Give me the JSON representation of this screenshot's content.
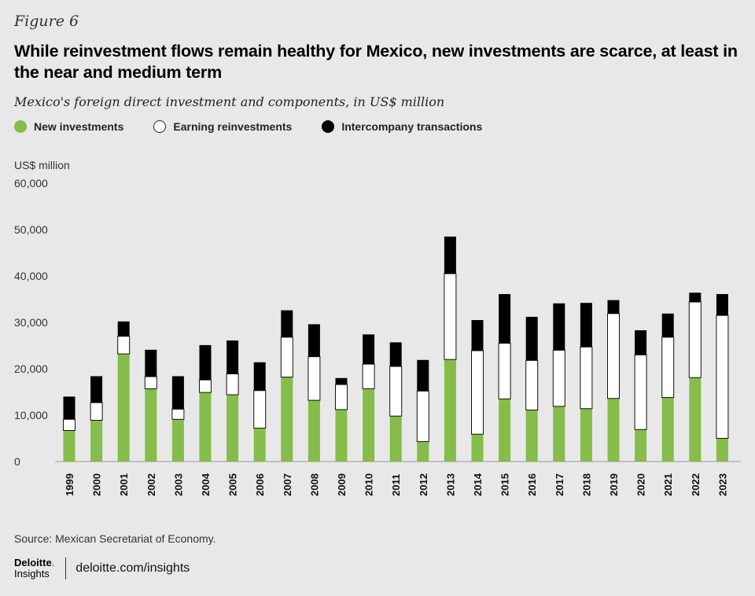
{
  "figure_label": "Figure 6",
  "title": "While reinvestment flows remain healthy for Mexico, new investments are scarce, at least in the near and medium term",
  "subtitle": "Mexico's foreign direct investment and components, in US$ million",
  "legend": [
    {
      "label": "New investments",
      "color": "#86bc4a"
    },
    {
      "label": "Earning reinvestments",
      "color": "#ffffff"
    },
    {
      "label": "Intercompany transactions",
      "color": "#000000"
    }
  ],
  "source": "Source: Mexican Secretariat of Economy.",
  "footer": {
    "brand_name": "Deloitte",
    "brand_dot": ".",
    "brand_sub": "Insights",
    "site": "deloitte.com/insights"
  },
  "chart_data": {
    "type": "bar",
    "stacked": true,
    "ylabel": "US$ million",
    "ylim": [
      0,
      60000
    ],
    "yticks": [
      "0",
      "10,000",
      "20,000",
      "30,000",
      "40,000",
      "50,000",
      "60,000"
    ],
    "categories": [
      "1999",
      "2000",
      "2001",
      "2002",
      "2003",
      "2004",
      "2005",
      "2006",
      "2007",
      "2008",
      "2009",
      "2010",
      "2011",
      "2012",
      "2013",
      "2014",
      "2015",
      "2016",
      "2017",
      "2018",
      "2019",
      "2020",
      "2021",
      "2022",
      "2023"
    ],
    "series": [
      {
        "name": "New investments",
        "color": "#86bc4a",
        "values": [
          6700,
          8900,
          23200,
          15700,
          9100,
          14900,
          14400,
          7200,
          18200,
          13200,
          11200,
          15700,
          9800,
          4300,
          22000,
          5900,
          13500,
          11100,
          11900,
          11400,
          13600,
          6900,
          13800,
          18100,
          5000
        ]
      },
      {
        "name": "Earning reinvestments",
        "color": "#ffffff",
        "values": [
          2400,
          3800,
          3800,
          2600,
          2200,
          2700,
          4500,
          8100,
          8600,
          9400,
          5400,
          5300,
          10700,
          10900,
          18500,
          18000,
          12000,
          10700,
          12100,
          13300,
          18300,
          16100,
          13000,
          16300,
          26500
        ]
      },
      {
        "name": "Intercompany transactions",
        "color": "#000000",
        "values": [
          4900,
          5700,
          3200,
          5800,
          7100,
          7500,
          7200,
          6100,
          5800,
          7000,
          1400,
          6400,
          5200,
          6700,
          8000,
          6600,
          10600,
          9400,
          10100,
          9500,
          2900,
          5300,
          5100,
          2000,
          4600
        ]
      }
    ]
  }
}
